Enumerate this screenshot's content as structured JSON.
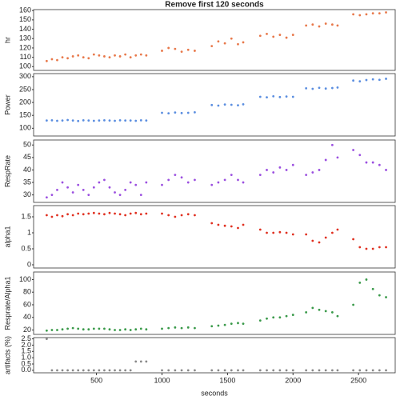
{
  "chart_data": [
    {
      "type": "line",
      "title": "Remove first 120 seconds",
      "ylabel": "hr",
      "x": [
        120,
        160,
        200,
        240,
        280,
        320,
        360,
        400,
        440,
        480,
        520,
        560,
        600,
        640,
        680,
        720,
        760,
        800,
        840,
        880,
        940,
        1000,
        1050,
        1100,
        1150,
        1200,
        1250,
        1320,
        1380,
        1430,
        1480,
        1530,
        1580,
        1620,
        1690,
        1750,
        1800,
        1850,
        1900,
        1950,
        2000,
        2050,
        2100,
        2150,
        2200,
        2250,
        2300,
        2340,
        2400,
        2460,
        2510,
        2560,
        2610,
        2660,
        2710
      ],
      "series": [
        {
          "name": "hr",
          "color": "#e8784a",
          "values": [
            106,
            108,
            107,
            110,
            109,
            111,
            112,
            110,
            109,
            113,
            112,
            111,
            110,
            112,
            111,
            113,
            110,
            112,
            113,
            112,
            null,
            117,
            120,
            119,
            116,
            118,
            117,
            null,
            122,
            127,
            125,
            130,
            124,
            126,
            null,
            133,
            135,
            132,
            134,
            131,
            134,
            null,
            144,
            145,
            143,
            146,
            145,
            144,
            null,
            156,
            155,
            156,
            157,
            157,
            158
          ]
        }
      ],
      "xlim": [
        20,
        2780
      ],
      "ylim": [
        96,
        161
      ],
      "yticks": [
        100,
        110,
        120,
        130,
        140,
        150,
        160
      ]
    },
    {
      "type": "line",
      "ylabel": "Power",
      "x": [
        120,
        160,
        200,
        240,
        280,
        320,
        360,
        400,
        440,
        480,
        520,
        560,
        600,
        640,
        680,
        720,
        760,
        800,
        840,
        880,
        940,
        1000,
        1050,
        1100,
        1150,
        1200,
        1250,
        1320,
        1380,
        1430,
        1480,
        1530,
        1580,
        1620,
        1690,
        1750,
        1800,
        1850,
        1900,
        1950,
        2000,
        2050,
        2100,
        2150,
        2200,
        2250,
        2300,
        2340,
        2400,
        2460,
        2510,
        2560,
        2610,
        2660,
        2710
      ],
      "series": [
        {
          "name": "Power",
          "color": "#5b8ee0",
          "values": [
            130,
            131,
            129,
            130,
            132,
            130,
            128,
            131,
            130,
            129,
            130,
            131,
            130,
            129,
            131,
            130,
            130,
            129,
            131,
            130,
            null,
            160,
            158,
            161,
            159,
            160,
            162,
            null,
            190,
            188,
            192,
            191,
            189,
            193,
            null,
            222,
            220,
            224,
            221,
            223,
            222,
            null,
            255,
            253,
            257,
            254,
            256,
            258,
            null,
            285,
            282,
            287,
            290,
            288,
            292
          ]
        }
      ],
      "xlim": [
        20,
        2780
      ],
      "ylim": [
        70,
        312
      ],
      "yticks": [
        100,
        150,
        200,
        250,
        300
      ]
    },
    {
      "type": "line",
      "ylabel": "RespRate",
      "x": [
        120,
        160,
        200,
        240,
        280,
        320,
        360,
        400,
        440,
        480,
        520,
        560,
        600,
        640,
        680,
        720,
        760,
        800,
        840,
        880,
        940,
        1000,
        1050,
        1100,
        1150,
        1200,
        1250,
        1320,
        1380,
        1430,
        1480,
        1530,
        1580,
        1620,
        1690,
        1750,
        1800,
        1850,
        1900,
        1950,
        2000,
        2050,
        2100,
        2150,
        2200,
        2250,
        2300,
        2340,
        2400,
        2460,
        2510,
        2560,
        2610,
        2660,
        2710
      ],
      "series": [
        {
          "name": "RespRate",
          "color": "#9b4fe0",
          "values": [
            29,
            30,
            32,
            35,
            33,
            31,
            34,
            32,
            30,
            33,
            35,
            36,
            33,
            31,
            30,
            32,
            35,
            34,
            30,
            35,
            null,
            34,
            36,
            38,
            37,
            35,
            36,
            null,
            34,
            35,
            36,
            38,
            36,
            35,
            null,
            38,
            40,
            39,
            41,
            40,
            42,
            null,
            38,
            39,
            40,
            44,
            50,
            45,
            null,
            48,
            46,
            43,
            43,
            42,
            40
          ]
        }
      ],
      "xlim": [
        20,
        2780
      ],
      "ylim": [
        27,
        52
      ],
      "yticks": [
        30,
        35,
        40,
        45,
        50
      ]
    },
    {
      "type": "line",
      "ylabel": "alpha1",
      "x": [
        120,
        160,
        200,
        240,
        280,
        320,
        360,
        400,
        440,
        480,
        520,
        560,
        600,
        640,
        680,
        720,
        760,
        800,
        840,
        880,
        940,
        1000,
        1050,
        1100,
        1150,
        1200,
        1250,
        1320,
        1380,
        1430,
        1480,
        1530,
        1580,
        1620,
        1690,
        1750,
        1800,
        1850,
        1900,
        1950,
        2000,
        2050,
        2100,
        2150,
        2200,
        2250,
        2300,
        2340,
        2400,
        2460,
        2510,
        2560,
        2610,
        2660,
        2710
      ],
      "series": [
        {
          "name": "alpha1",
          "color": "#e03020",
          "values": [
            1.55,
            1.5,
            1.55,
            1.52,
            1.58,
            1.55,
            1.6,
            1.58,
            1.6,
            1.62,
            1.6,
            1.58,
            1.62,
            1.6,
            1.58,
            1.55,
            1.6,
            1.62,
            1.58,
            1.6,
            null,
            1.6,
            1.55,
            1.5,
            1.55,
            1.58,
            1.55,
            null,
            1.3,
            1.25,
            1.22,
            1.2,
            1.15,
            1.25,
            null,
            1.1,
            1.0,
            1.0,
            1.02,
            1.0,
            0.95,
            null,
            0.95,
            0.75,
            0.7,
            0.85,
            1.0,
            1.1,
            null,
            0.8,
            0.55,
            0.5,
            0.5,
            0.55,
            0.55
          ]
        }
      ],
      "xlim": [
        20,
        2780
      ],
      "ylim": [
        -0.1,
        1.85
      ],
      "yticks": [
        0,
        0.5,
        1,
        1.5
      ]
    },
    {
      "type": "line",
      "ylabel": "Resprate/Alpha1",
      "x": [
        120,
        160,
        200,
        240,
        280,
        320,
        360,
        400,
        440,
        480,
        520,
        560,
        600,
        640,
        680,
        720,
        760,
        800,
        840,
        880,
        940,
        1000,
        1050,
        1100,
        1150,
        1200,
        1250,
        1320,
        1380,
        1430,
        1480,
        1530,
        1580,
        1620,
        1690,
        1750,
        1800,
        1850,
        1900,
        1950,
        2000,
        2050,
        2100,
        2150,
        2200,
        2250,
        2300,
        2340,
        2400,
        2460,
        2510,
        2560,
        2610,
        2660,
        2710
      ],
      "series": [
        {
          "name": "Resprate/Alpha1",
          "color": "#3a9a4a",
          "values": [
            19,
            20,
            20,
            21,
            22,
            23,
            22,
            21,
            21,
            22,
            22,
            22,
            21,
            20,
            20,
            21,
            20,
            21,
            22,
            21,
            null,
            22,
            23,
            24,
            23,
            24,
            23,
            null,
            26,
            27,
            28,
            30,
            31,
            30,
            null,
            35,
            38,
            40,
            40,
            42,
            44,
            null,
            48,
            55,
            52,
            50,
            48,
            42,
            null,
            60,
            95,
            100,
            85,
            75,
            72
          ]
        }
      ],
      "xlim": [
        20,
        2780
      ],
      "ylim": [
        13,
        112
      ],
      "yticks": [
        20,
        40,
        60,
        80,
        100
      ]
    },
    {
      "type": "line",
      "ylabel": "artifacts (%)",
      "xlabel": "seconds",
      "x": [
        120,
        160,
        200,
        240,
        280,
        320,
        360,
        400,
        440,
        480,
        520,
        560,
        600,
        640,
        680,
        720,
        760,
        800,
        840,
        880,
        940,
        1000,
        1050,
        1100,
        1150,
        1200,
        1250,
        1320,
        1380,
        1430,
        1480,
        1530,
        1580,
        1620,
        1690,
        1750,
        1800,
        1850,
        1900,
        1950,
        2000,
        2050,
        2100,
        2150,
        2200,
        2250,
        2300,
        2340,
        2400,
        2460,
        2510,
        2560,
        2610,
        2660,
        2710
      ],
      "series": [
        {
          "name": "artifacts (%)",
          "color": "#888888",
          "values": [
            2.5,
            0,
            0,
            0,
            0,
            0,
            0,
            0,
            0,
            0,
            0,
            0,
            0,
            0,
            0,
            0,
            0,
            0.7,
            0.7,
            0.7,
            null,
            0,
            0,
            0,
            0,
            0,
            0,
            null,
            0,
            0,
            0,
            0,
            0,
            0,
            null,
            0,
            0,
            0,
            0,
            0,
            0,
            null,
            0,
            0,
            0,
            0,
            0,
            0,
            null,
            0,
            0,
            0,
            0,
            0,
            0
          ]
        }
      ],
      "xlim": [
        20,
        2780
      ],
      "ylim": [
        -0.2,
        2.6
      ],
      "yticks": [
        {
          "value": 0,
          "label": "0.0"
        },
        0.5,
        {
          "value": 1,
          "label": "1.0"
        },
        1.5,
        {
          "value": 2,
          "label": "2.0"
        },
        2.5
      ],
      "xticks": [
        500,
        1000,
        1500,
        2000,
        2500
      ]
    }
  ]
}
